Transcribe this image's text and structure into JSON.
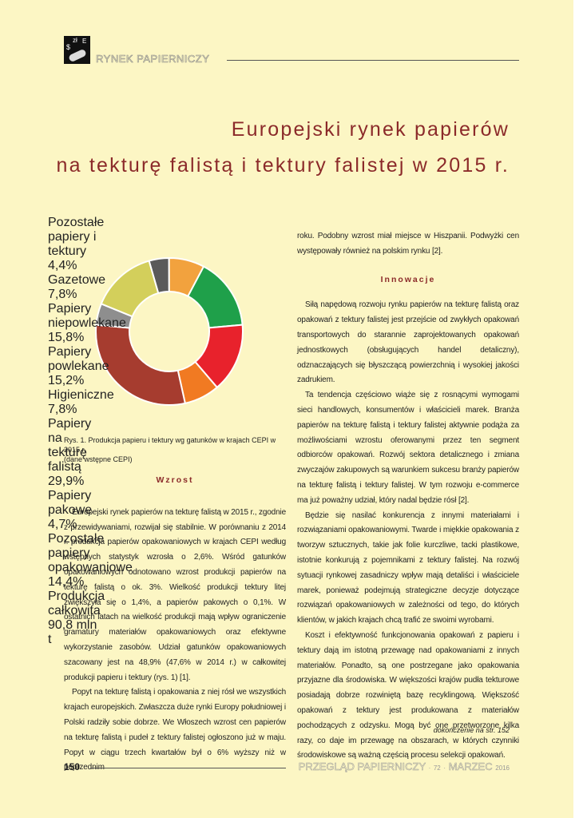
{
  "header": {
    "icon": [
      "$",
      "zł",
      "E"
    ],
    "section": "RYNEK PAPIERNICZY"
  },
  "title": {
    "lines": [
      "Europejski rynek papierów",
      "na tekturę falistą i tektury falistej w 2015 r."
    ]
  },
  "chart_data": {
    "type": "pie",
    "donut": true,
    "center_label": [
      "Produkcja",
      "całkowita",
      "90,8 mln t"
    ],
    "categories": [
      "Pozostałe papiery i tektury",
      "Gazetowe",
      "Papiery niepowlekane",
      "Papiery powlekane",
      "Higieniczne",
      "Papiery na tekturę falistą",
      "Papiery pakowe",
      "Pozostałe papiery opakowaniowe"
    ],
    "values": [
      4.4,
      7.8,
      15.8,
      15.2,
      7.8,
      29.9,
      4.7,
      14.4
    ],
    "value_labels": [
      "4,4%",
      "7,8%",
      "15,8%",
      "15,2%",
      "7,8%",
      "29,9%",
      "4,7%",
      "14,4%"
    ],
    "colors": [
      "#5a5a5a",
      "#f2a23e",
      "#1fa04a",
      "#e8222c",
      "#f17a22",
      "#a63c2f",
      "#8e8e8e",
      "#d3cf5b"
    ]
  },
  "caption": [
    "Rys. 1. Produkcja papieru i tektury wg gatunków w krajach CEPI w 2015 r.",
    "(dane wstępne CEPI)"
  ],
  "left_column": {
    "heading": "Wzrost",
    "paragraphs": [
      "Europejski rynek papierów na tekturę falistą w 2015 r., zgodnie z przewidywaniami, rozwijał się stabilnie. W porównaniu z 2014 r. produkcja papierów opakowaniowych w krajach CEPI według wstępnych statystyk wzrosła o 2,6%. Wśród gatunków opakowaniowych odnotowano wzrost produkcji papierów na tekturę falistą o ok. 3%. Wielkość produkcji tektury litej zwiększyła się o 1,4%, a papierów pakowych o 0,1%. W ostatnich latach na wielkość produkcji mają wpływ ograniczenie gramatury materiałów opakowaniowych oraz efektywne wykorzystanie zasobów. Udział gatunków opakowaniowych szacowany jest na 48,9% (47,6% w 2014 r.) w całkowitej produkcji papieru i tektury (rys. 1) [1].",
      "Popyt na tekturę falistą i opakowania z niej rósł we wszystkich krajach europejskich. Zwłaszcza duże rynki Europy południowej i Polski radziły sobie dobrze. We Włoszech wzrost cen papierów na tekturę falistą i pudeł z tektury falistej ogłoszono już w maju. Popyt w ciągu trzech kwartałów był o 6% wyższy niż w poprzednim"
    ]
  },
  "right_column": {
    "intro": "roku. Podobny wzrost miał miejsce w Hiszpanii. Podwyżki cen występowały również na polskim rynku [2].",
    "heading": "Innowacje",
    "paragraphs": [
      "Siłą napędową rozwoju rynku papierów na tekturę falistą oraz opakowań z tektury falistej jest przejście od zwykłych opakowań transportowych do starannie zaprojektowanych opakowań jednostkowych (obsługujących handel detaliczny), odznaczających się błyszczącą powierzchnią i wysokiej jakości zadrukiem.",
      "Ta tendencja częściowo wiąże się z rosnącymi wymogami sieci handlowych, konsumentów i właścicieli marek. Branża papierów na tekturę falistą i tektury falistej aktywnie podąża za możliwościami wzrostu oferowanymi przez ten segment odbiorców opakowań. Rozwój sektora detalicznego i zmiana zwyczajów zakupowych są warunkiem sukcesu branży papierów na tekturę falistą i tektury falistej. W tym rozwoju e-commerce ma już poważny udział, który nadal będzie rósł [2].",
      "Będzie się nasilać konkurencja z innymi materiałami i rozwiązaniami opakowaniowymi. Twarde i miękkie opakowania z tworzyw sztucznych, takie jak folie kurczliwe, tacki plastikowe, istotnie konkurują z pojemnikami z tektury falistej. Na rozwój sytuacji rynkowej zasadniczy wpływ mają detaliści i właściciele marek, ponieważ podejmują strategiczne decyzje dotyczące rozwiązań opakowaniowych w zależności od tego, do których klientów, w jakich krajach chcą trafić ze swoimi wyrobami.",
      "Koszt i efektywność funkcjonowania opakowań z papieru i tektury dają im istotną przewagę nad opakowaniami z innych materiałów. Ponadto, są one postrzegane jako opakowania przyjazne dla środowiska. W większości krajów pudła tekturowe posiadają dobrze rozwiniętą bazę recyklingową. Większość opakowań z tektury jest produkowana z materiałów pochodzących z odzysku. Mogą być one przetworzone kilka razy, co daje im przewagę na obszarach, w których czynniki środowiskowe są ważną częścią procesu selekcji opakowań."
    ],
    "continued": "dokończenie na str. 152"
  },
  "footer": {
    "page": "150",
    "magazine": "PRZEGLĄD PAPIERNICZY",
    "issue": "72",
    "month": "MARZEC",
    "year": "2016"
  }
}
